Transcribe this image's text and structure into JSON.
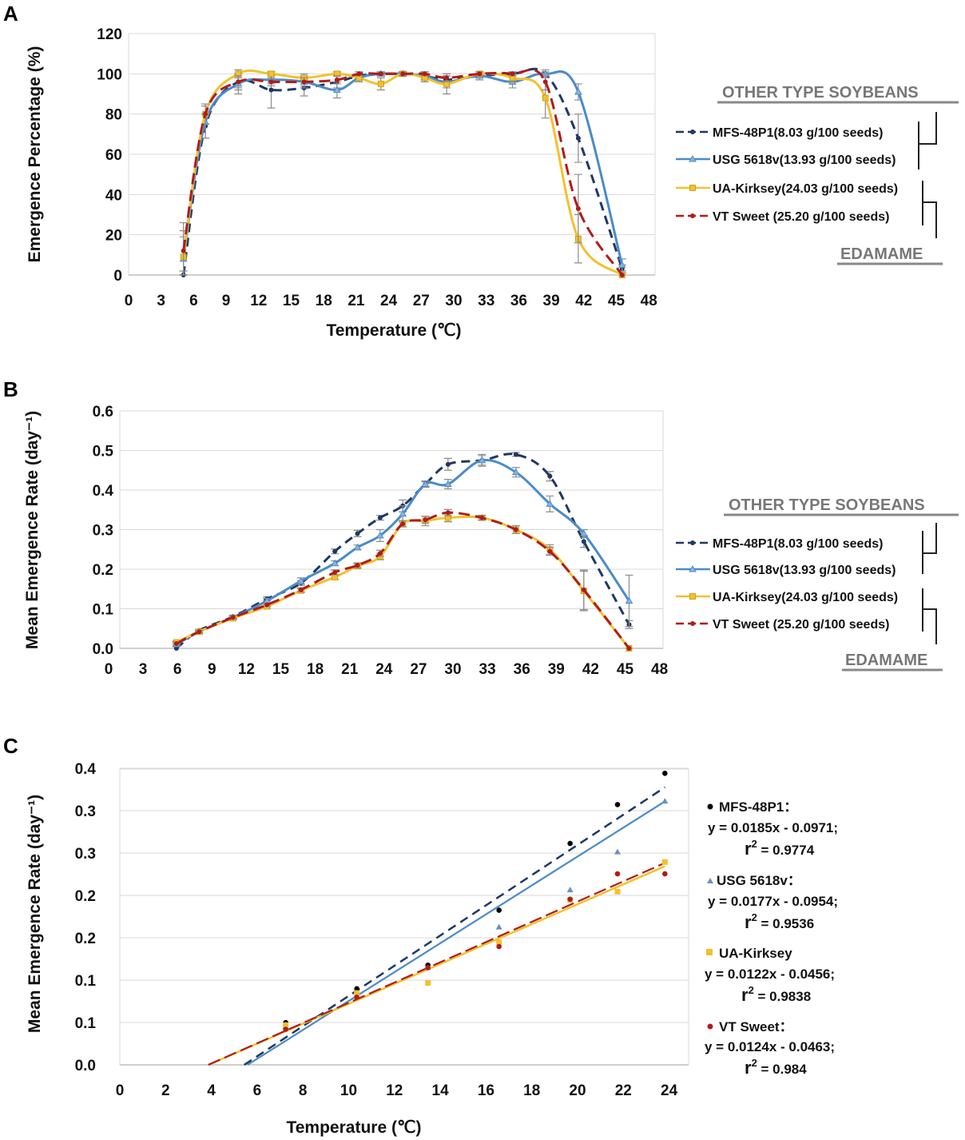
{
  "figure": {
    "panels": [
      "A",
      "B",
      "C"
    ],
    "group_labels": {
      "other": "OTHER TYPE SOYBEANS",
      "edamame": "EDAMAME"
    },
    "legend": [
      "MFS-48P1(8.03 g/100 seeds)",
      "USG 5618v(13.93 g/100 seeds)",
      "UA-Kirksey(24.03 g/100 seeds)",
      "VT Sweet (25.20 g/100 seeds)"
    ],
    "colors": {
      "mfs": "#1f3864",
      "usg": "#4a8bc9",
      "ua": "#f2c12e",
      "vt": "#b01c1c",
      "grid": "#d9d9d9",
      "axis": "#bfbfbf",
      "errbar": "#8c8c8c",
      "group_text": "#777777"
    }
  },
  "chart_data": [
    {
      "panel": "A",
      "type": "line",
      "title": "",
      "xlabel": "Temperature (℃)",
      "ylabel": "Emergence Percentage (%)",
      "xlim": [
        0,
        48
      ],
      "ylim": [
        0,
        120
      ],
      "xticks": [
        0,
        3,
        6,
        9,
        12,
        15,
        18,
        21,
        24,
        27,
        30,
        33,
        36,
        39,
        42,
        45,
        48
      ],
      "yticks": [
        0,
        20,
        40,
        60,
        80,
        100,
        120
      ],
      "x": [
        5,
        7,
        10,
        13,
        16,
        19,
        21,
        23,
        25,
        27,
        29,
        32,
        35,
        38,
        41,
        45
      ],
      "series": [
        {
          "name": "MFS-48P1(8.03 g/100 seeds)",
          "values": [
            0,
            74,
            96,
            92,
            93,
            96,
            99,
            100,
            100,
            99,
            97,
            99,
            100,
            100,
            68,
            3
          ],
          "error": [
            0,
            6,
            4,
            9,
            4,
            3,
            2,
            1,
            1,
            2,
            2,
            2,
            1,
            2,
            12,
            2
          ]
        },
        {
          "name": "USG 5618v(13.93 g/100 seeds)",
          "values": [
            8,
            76,
            95,
            97,
            96,
            92,
            98,
            100,
            100,
            99,
            96,
            99,
            96,
            100,
            91,
            5
          ],
          "error": [
            18,
            8,
            5,
            2,
            3,
            4,
            2,
            1,
            1,
            2,
            3,
            1,
            3,
            1,
            4,
            3
          ]
        },
        {
          "name": "UA-Kirksey(24.03 g/100 seeds)",
          "values": [
            9,
            80,
            100,
            100,
            98,
            100,
            98,
            95,
            100,
            98,
            95,
            100,
            98,
            88,
            18,
            0
          ],
          "error": [
            10,
            5,
            2,
            1,
            2,
            1,
            2,
            3,
            1,
            2,
            5,
            1,
            2,
            10,
            12,
            0
          ]
        },
        {
          "name": "VT Sweet (25.20 g/100 seeds)",
          "values": [
            12,
            80,
            96,
            96,
            96,
            97,
            100,
            100,
            100,
            100,
            98,
            100,
            100,
            96,
            33,
            0
          ],
          "error": [
            10,
            5,
            3,
            2,
            2,
            2,
            1,
            1,
            1,
            1,
            2,
            1,
            1,
            4,
            17,
            0
          ]
        }
      ]
    },
    {
      "panel": "B",
      "type": "line",
      "title": "",
      "xlabel": "",
      "ylabel": "Mean Emergence Rate (day⁻¹)",
      "xlim": [
        0,
        48
      ],
      "ylim": [
        0,
        0.6
      ],
      "xticks": [
        0,
        3,
        6,
        9,
        12,
        15,
        18,
        21,
        24,
        27,
        30,
        33,
        36,
        39,
        42,
        45,
        48
      ],
      "yticks": [
        "0.0",
        "0.1",
        "0.2",
        "0.3",
        "0.4",
        "0.5",
        "0.6"
      ],
      "x": [
        5,
        7,
        10,
        13,
        16,
        19,
        21,
        23,
        25,
        27,
        29,
        32,
        35,
        38,
        41,
        45
      ],
      "series": [
        {
          "name": "MFS-48P1(8.03 g/100 seeds)",
          "values": [
            0.0,
            0.045,
            0.08,
            0.125,
            0.165,
            0.245,
            0.29,
            0.33,
            0.36,
            0.415,
            0.465,
            0.475,
            0.49,
            0.435,
            0.27,
            0.06
          ],
          "error": [
            0,
            0.003,
            0.004,
            0.005,
            0.006,
            0.006,
            0.008,
            0.006,
            0.015,
            0.006,
            0.015,
            0.012,
            0.005,
            0.012,
            0.015,
            0.01
          ]
        },
        {
          "name": "USG 5618v(13.93 g/100 seeds)",
          "values": [
            0.01,
            0.042,
            0.078,
            0.12,
            0.17,
            0.215,
            0.255,
            0.285,
            0.34,
            0.415,
            0.415,
            0.475,
            0.445,
            0.365,
            0.29,
            0.12
          ],
          "error": [
            0.005,
            0.003,
            0.004,
            0.006,
            0.008,
            0.006,
            0.006,
            0.015,
            0.02,
            0.008,
            0.012,
            0.015,
            0.012,
            0.02,
            0.01,
            0.065
          ]
        },
        {
          "name": "UA-Kirksey(24.03 g/100 seeds)",
          "values": [
            0.015,
            0.042,
            0.076,
            0.106,
            0.146,
            0.18,
            0.208,
            0.232,
            0.315,
            0.322,
            0.33,
            0.33,
            0.3,
            0.25,
            0.145,
            0.0
          ],
          "error": [
            0.004,
            0.003,
            0.003,
            0.005,
            0.005,
            0.006,
            0.006,
            0.008,
            0.008,
            0.012,
            0.01,
            0.006,
            0.01,
            0.012,
            0.05,
            0.0
          ]
        },
        {
          "name": "VT Sweet (25.20 g/100 seeds)",
          "values": [
            0.012,
            0.042,
            0.078,
            0.11,
            0.148,
            0.192,
            0.21,
            0.24,
            0.315,
            0.325,
            0.343,
            0.33,
            0.3,
            0.245,
            0.148,
            0.0
          ],
          "error": [
            0.004,
            0.003,
            0.003,
            0.004,
            0.005,
            0.006,
            0.006,
            0.008,
            0.008,
            0.008,
            0.008,
            0.006,
            0.01,
            0.01,
            0.05,
            0.0
          ]
        }
      ]
    },
    {
      "panel": "C",
      "type": "scatter",
      "title": "",
      "xlabel": "Temperature (℃)",
      "ylabel": "Mean Emergence Rate (day⁻¹)",
      "xlim": [
        0,
        24
      ],
      "ylim": [
        0,
        0.35
      ],
      "xticks": [
        0,
        2,
        4,
        6,
        8,
        10,
        12,
        14,
        16,
        18,
        20,
        22,
        24
      ],
      "yticks": [
        "0.0",
        "0.1",
        "0.1",
        "0.2",
        "0.2",
        "0.3",
        "0.3",
        "0.4"
      ],
      "x": [
        7,
        10,
        13,
        16,
        19,
        21,
        23
      ],
      "series": [
        {
          "name": "MFS-48P1",
          "values": [
            0.05,
            0.09,
            0.118,
            0.183,
            0.262,
            0.308,
            0.345
          ],
          "fit": {
            "slope": 0.0185,
            "intercept": -0.0971,
            "r2": 0.9774
          }
        },
        {
          "name": "USG 5618v",
          "values": [
            0.045,
            0.085,
            0.115,
            0.163,
            0.207,
            0.252,
            0.312
          ],
          "fit": {
            "slope": 0.0177,
            "intercept": -0.0954,
            "r2": 0.9536
          }
        },
        {
          "name": "UA-Kirksey",
          "values": [
            0.047,
            0.085,
            0.097,
            0.145,
            0.195,
            0.205,
            0.24
          ],
          "fit": {
            "slope": 0.0122,
            "intercept": -0.0456,
            "r2": 0.9838
          }
        },
        {
          "name": "VT Sweet",
          "values": [
            0.042,
            0.08,
            0.115,
            0.14,
            0.196,
            0.226,
            0.226
          ],
          "fit": {
            "slope": 0.0124,
            "intercept": -0.0463,
            "r2": 0.984
          }
        }
      ],
      "legend": [
        {
          "name": "MFS-48P1：",
          "eq": "y = 0.0185x - 0.0971;",
          "r2_label": "r",
          "r2_sup": "2",
          "r2_value": " = 0.9774"
        },
        {
          "name": "USG 5618v：",
          "eq": "y = 0.0177x - 0.0954;",
          "r2_label": "r",
          "r2_sup": "2",
          "r2_value": " = 0.9536"
        },
        {
          "name": "UA-Kirksey",
          "eq": "y = 0.0122x - 0.0456;",
          "r2_label": "r",
          "r2_sup": "2",
          "r2_value": " = 0.9838"
        },
        {
          "name": "VT Sweet：",
          "eq": "y = 0.0124x - 0.0463;",
          "r2_label": "r",
          "r2_sup": "2",
          "r2_value": " = 0.984"
        }
      ]
    }
  ]
}
